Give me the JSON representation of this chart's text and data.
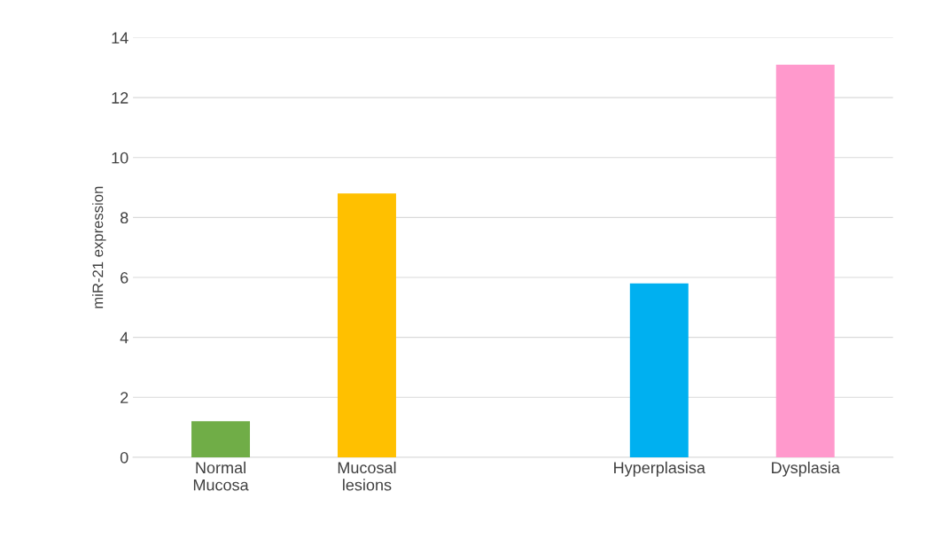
{
  "chart_data": {
    "type": "bar",
    "ylabel": "miR-21 expression",
    "categories": [
      "Normal\nMucosa",
      "Mucosal\nlesions",
      null,
      "Hyperplasisa",
      "Dysplasia"
    ],
    "values": [
      1.2,
      8.8,
      null,
      5.8,
      13.1
    ],
    "colors": [
      "#70ad47",
      "#ffc000",
      "#ffffff",
      "#00b0f0",
      "#ff99cc"
    ],
    "ylim": [
      0,
      14
    ],
    "yticks": [
      0,
      2,
      4,
      6,
      8,
      10,
      12,
      14
    ],
    "grid": "y",
    "legend": false
  }
}
